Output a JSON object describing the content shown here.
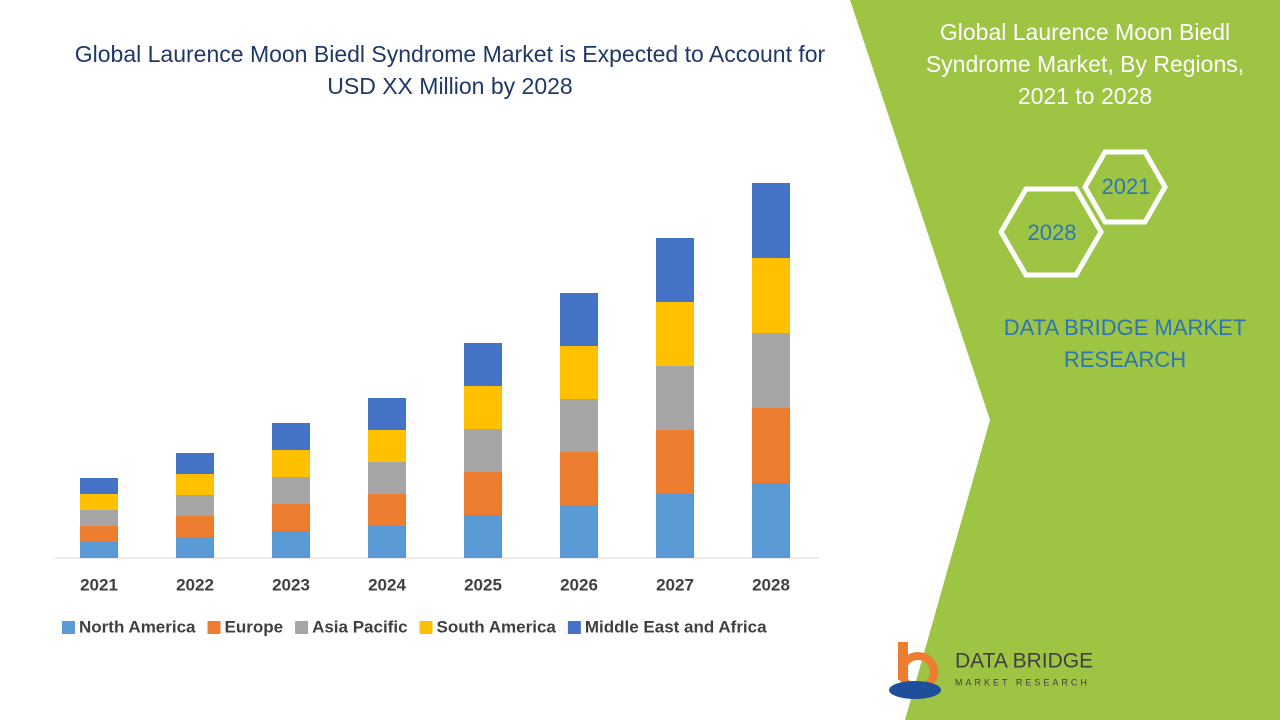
{
  "chart_data": {
    "type": "stacked-bar",
    "title": "Global Laurence Moon Biedl Syndrome Market is Expected to Account for USD XX Million by 2028",
    "categories": [
      "2021",
      "2022",
      "2023",
      "2024",
      "2025",
      "2026",
      "2027",
      "2028"
    ],
    "series": [
      {
        "name": "North America",
        "color": "#5b9bd5",
        "values": [
          16,
          21,
          27,
          32,
          43,
          53,
          64,
          75
        ]
      },
      {
        "name": "Europe",
        "color": "#ed7d31",
        "values": [
          16,
          21,
          27,
          32,
          43,
          53,
          64,
          75
        ]
      },
      {
        "name": "Asia Pacific",
        "color": "#a5a5a5",
        "values": [
          16,
          21,
          27,
          32,
          43,
          53,
          64,
          75
        ]
      },
      {
        "name": "South America",
        "color": "#ffc000",
        "values": [
          16,
          21,
          27,
          32,
          43,
          53,
          64,
          75
        ]
      },
      {
        "name": "Middle East and Africa",
        "color": "#4472c4",
        "values": [
          16,
          21,
          27,
          32,
          43,
          53,
          64,
          75
        ]
      }
    ],
    "ylim": [
      0,
      400
    ],
    "legend": "bottom"
  },
  "panel": {
    "title": "Global Laurence Moon Biedl Syndrome Market, By Regions, 2021 to 2028",
    "hex_labels": [
      "2021",
      "2028"
    ],
    "brand": "DATA BRIDGE MARKET RESEARCH"
  },
  "logo": {
    "name": "DATA BRIDGE",
    "tagline": "MARKET RESEARCH"
  }
}
